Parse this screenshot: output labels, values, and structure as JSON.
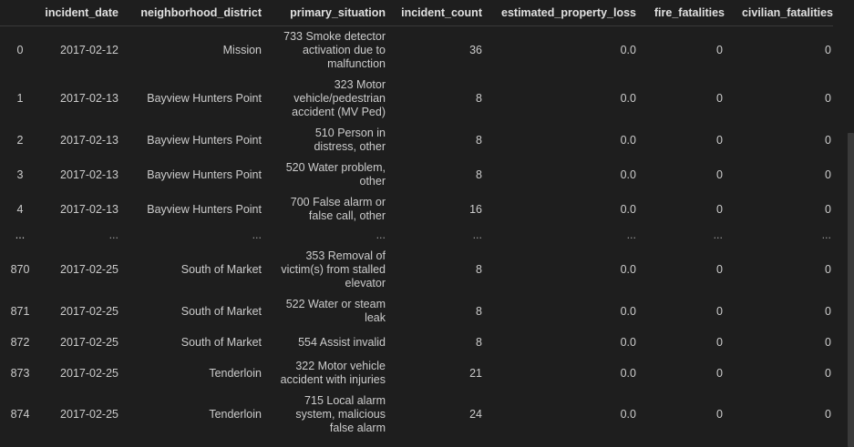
{
  "columns": [
    "",
    "incident_date",
    "neighborhood_district",
    "primary_situation",
    "incident_count",
    "estimated_property_loss",
    "fire_fatalities",
    "civilian_fatalities"
  ],
  "rows": [
    {
      "index": "0",
      "incident_date": "2017-02-12",
      "neighborhood_district": "Mission",
      "primary_situation": "733 Smoke detector activation due to malfunction",
      "incident_count": "36",
      "estimated_property_loss": "0.0",
      "fire_fatalities": "0",
      "civilian_fatalities": "0"
    },
    {
      "index": "1",
      "incident_date": "2017-02-13",
      "neighborhood_district": "Bayview Hunters Point",
      "primary_situation": "323 Motor vehicle/pedestrian accident (MV Ped)",
      "incident_count": "8",
      "estimated_property_loss": "0.0",
      "fire_fatalities": "0",
      "civilian_fatalities": "0"
    },
    {
      "index": "2",
      "incident_date": "2017-02-13",
      "neighborhood_district": "Bayview Hunters Point",
      "primary_situation": "510 Person in distress, other",
      "incident_count": "8",
      "estimated_property_loss": "0.0",
      "fire_fatalities": "0",
      "civilian_fatalities": "0"
    },
    {
      "index": "3",
      "incident_date": "2017-02-13",
      "neighborhood_district": "Bayview Hunters Point",
      "primary_situation": "520 Water problem, other",
      "incident_count": "8",
      "estimated_property_loss": "0.0",
      "fire_fatalities": "0",
      "civilian_fatalities": "0"
    },
    {
      "index": "4",
      "incident_date": "2017-02-13",
      "neighborhood_district": "Bayview Hunters Point",
      "primary_situation": "700 False alarm or false call, other",
      "incident_count": "16",
      "estimated_property_loss": "0.0",
      "fire_fatalities": "0",
      "civilian_fatalities": "0"
    },
    {
      "index": "...",
      "incident_date": "...",
      "neighborhood_district": "...",
      "primary_situation": "...",
      "incident_count": "...",
      "estimated_property_loss": "...",
      "fire_fatalities": "...",
      "civilian_fatalities": "..."
    },
    {
      "index": "870",
      "incident_date": "2017-02-25",
      "neighborhood_district": "South of Market",
      "primary_situation": "353 Removal of victim(s) from stalled elevator",
      "incident_count": "8",
      "estimated_property_loss": "0.0",
      "fire_fatalities": "0",
      "civilian_fatalities": "0"
    },
    {
      "index": "871",
      "incident_date": "2017-02-25",
      "neighborhood_district": "South of Market",
      "primary_situation": "522 Water or steam leak",
      "incident_count": "8",
      "estimated_property_loss": "0.0",
      "fire_fatalities": "0",
      "civilian_fatalities": "0"
    },
    {
      "index": "872",
      "incident_date": "2017-02-25",
      "neighborhood_district": "South of Market",
      "primary_situation": "554 Assist invalid",
      "incident_count": "8",
      "estimated_property_loss": "0.0",
      "fire_fatalities": "0",
      "civilian_fatalities": "0"
    },
    {
      "index": "873",
      "incident_date": "2017-02-25",
      "neighborhood_district": "Tenderloin",
      "primary_situation": "322 Motor vehicle accident with injuries",
      "incident_count": "21",
      "estimated_property_loss": "0.0",
      "fire_fatalities": "0",
      "civilian_fatalities": "0"
    },
    {
      "index": "874",
      "incident_date": "2017-02-25",
      "neighborhood_district": "Tenderloin",
      "primary_situation": "715 Local alarm system, malicious false alarm",
      "incident_count": "24",
      "estimated_property_loss": "0.0",
      "fire_fatalities": "0",
      "civilian_fatalities": "0"
    }
  ],
  "colors": {
    "background": "#1e1e1e",
    "text": "#cccccc",
    "header_text": "#e0e0e0",
    "scrollbar_thumb": "#3a3a3a"
  }
}
